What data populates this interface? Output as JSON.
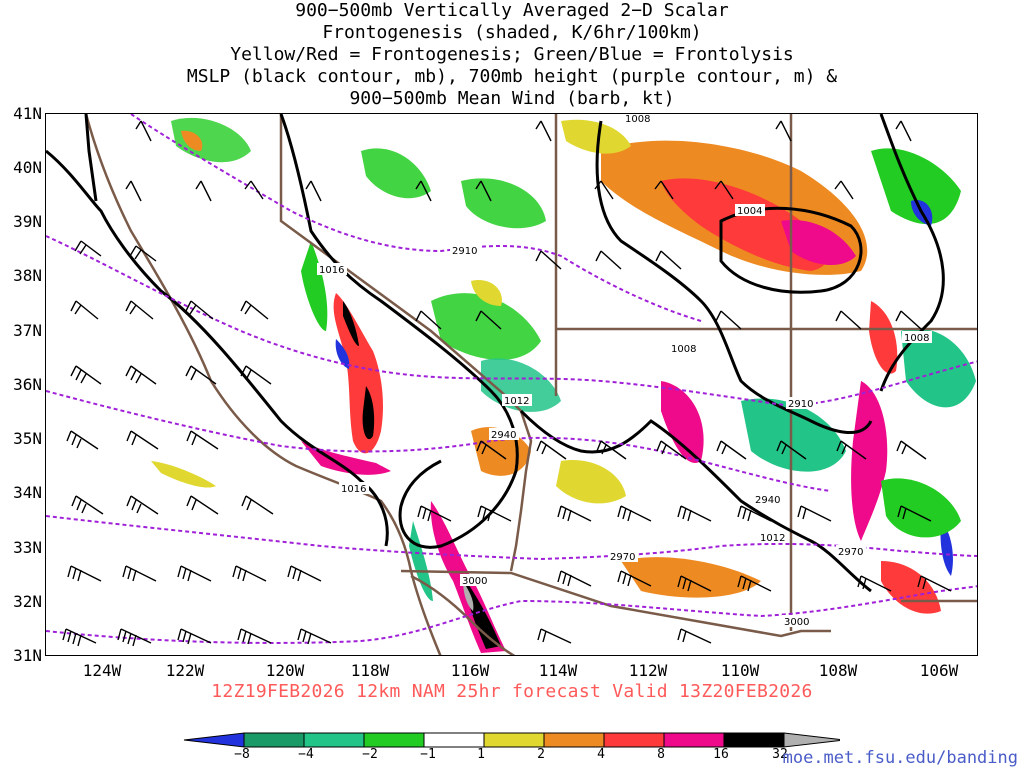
{
  "title_lines": [
    "900−500mb Vertically Averaged 2−D Scalar",
    "Frontogenesis (shaded, K/6hr/100km)",
    "Yellow/Red = Frontogenesis;  Green/Blue = Frontolysis",
    "MSLP (black contour, mb), 700mb height (purple contour, m) &",
    "900−500mb Mean Wind (barb, kt)"
  ],
  "y_axis_labels": [
    "41N",
    "40N",
    "39N",
    "38N",
    "37N",
    "36N",
    "35N",
    "34N",
    "33N",
    "32N",
    "31N"
  ],
  "x_axis_labels": [
    "124W",
    "122W",
    "120W",
    "118W",
    "116W",
    "114W",
    "112W",
    "110W",
    "108W",
    "106W"
  ],
  "valid_text": "12Z19FEB2026 12km NAM 25hr forecast Valid 13Z20FEB2026",
  "colorbar": {
    "labels": [
      "−8",
      "−4",
      "−2",
      "−1",
      "1",
      "2",
      "4",
      "8",
      "16",
      "32"
    ],
    "colors": [
      "#2233dd",
      "#1a9a66",
      "#22c488",
      "#22cc22",
      "#ffffff",
      "#e0d830",
      "#ee8a22",
      "#ff3a3a",
      "#ee0a8a",
      "#000000",
      "#b0b0b0"
    ]
  },
  "website": "moe.met.fsu.edu/banding",
  "mslp_labels": [
    "1016",
    "1016",
    "1012",
    "1012",
    "1008",
    "1008",
    "1008",
    "1004"
  ],
  "height_labels": [
    "2910",
    "2910",
    "2940",
    "2940",
    "2970",
    "2970",
    "3000",
    "3000"
  ],
  "colors": {
    "mslp_contour": "#000000",
    "height_contour": "#a020d8",
    "borders": "#7a5a48",
    "valid_text": "#ff5a5a",
    "website": "#4a5cc8"
  }
}
